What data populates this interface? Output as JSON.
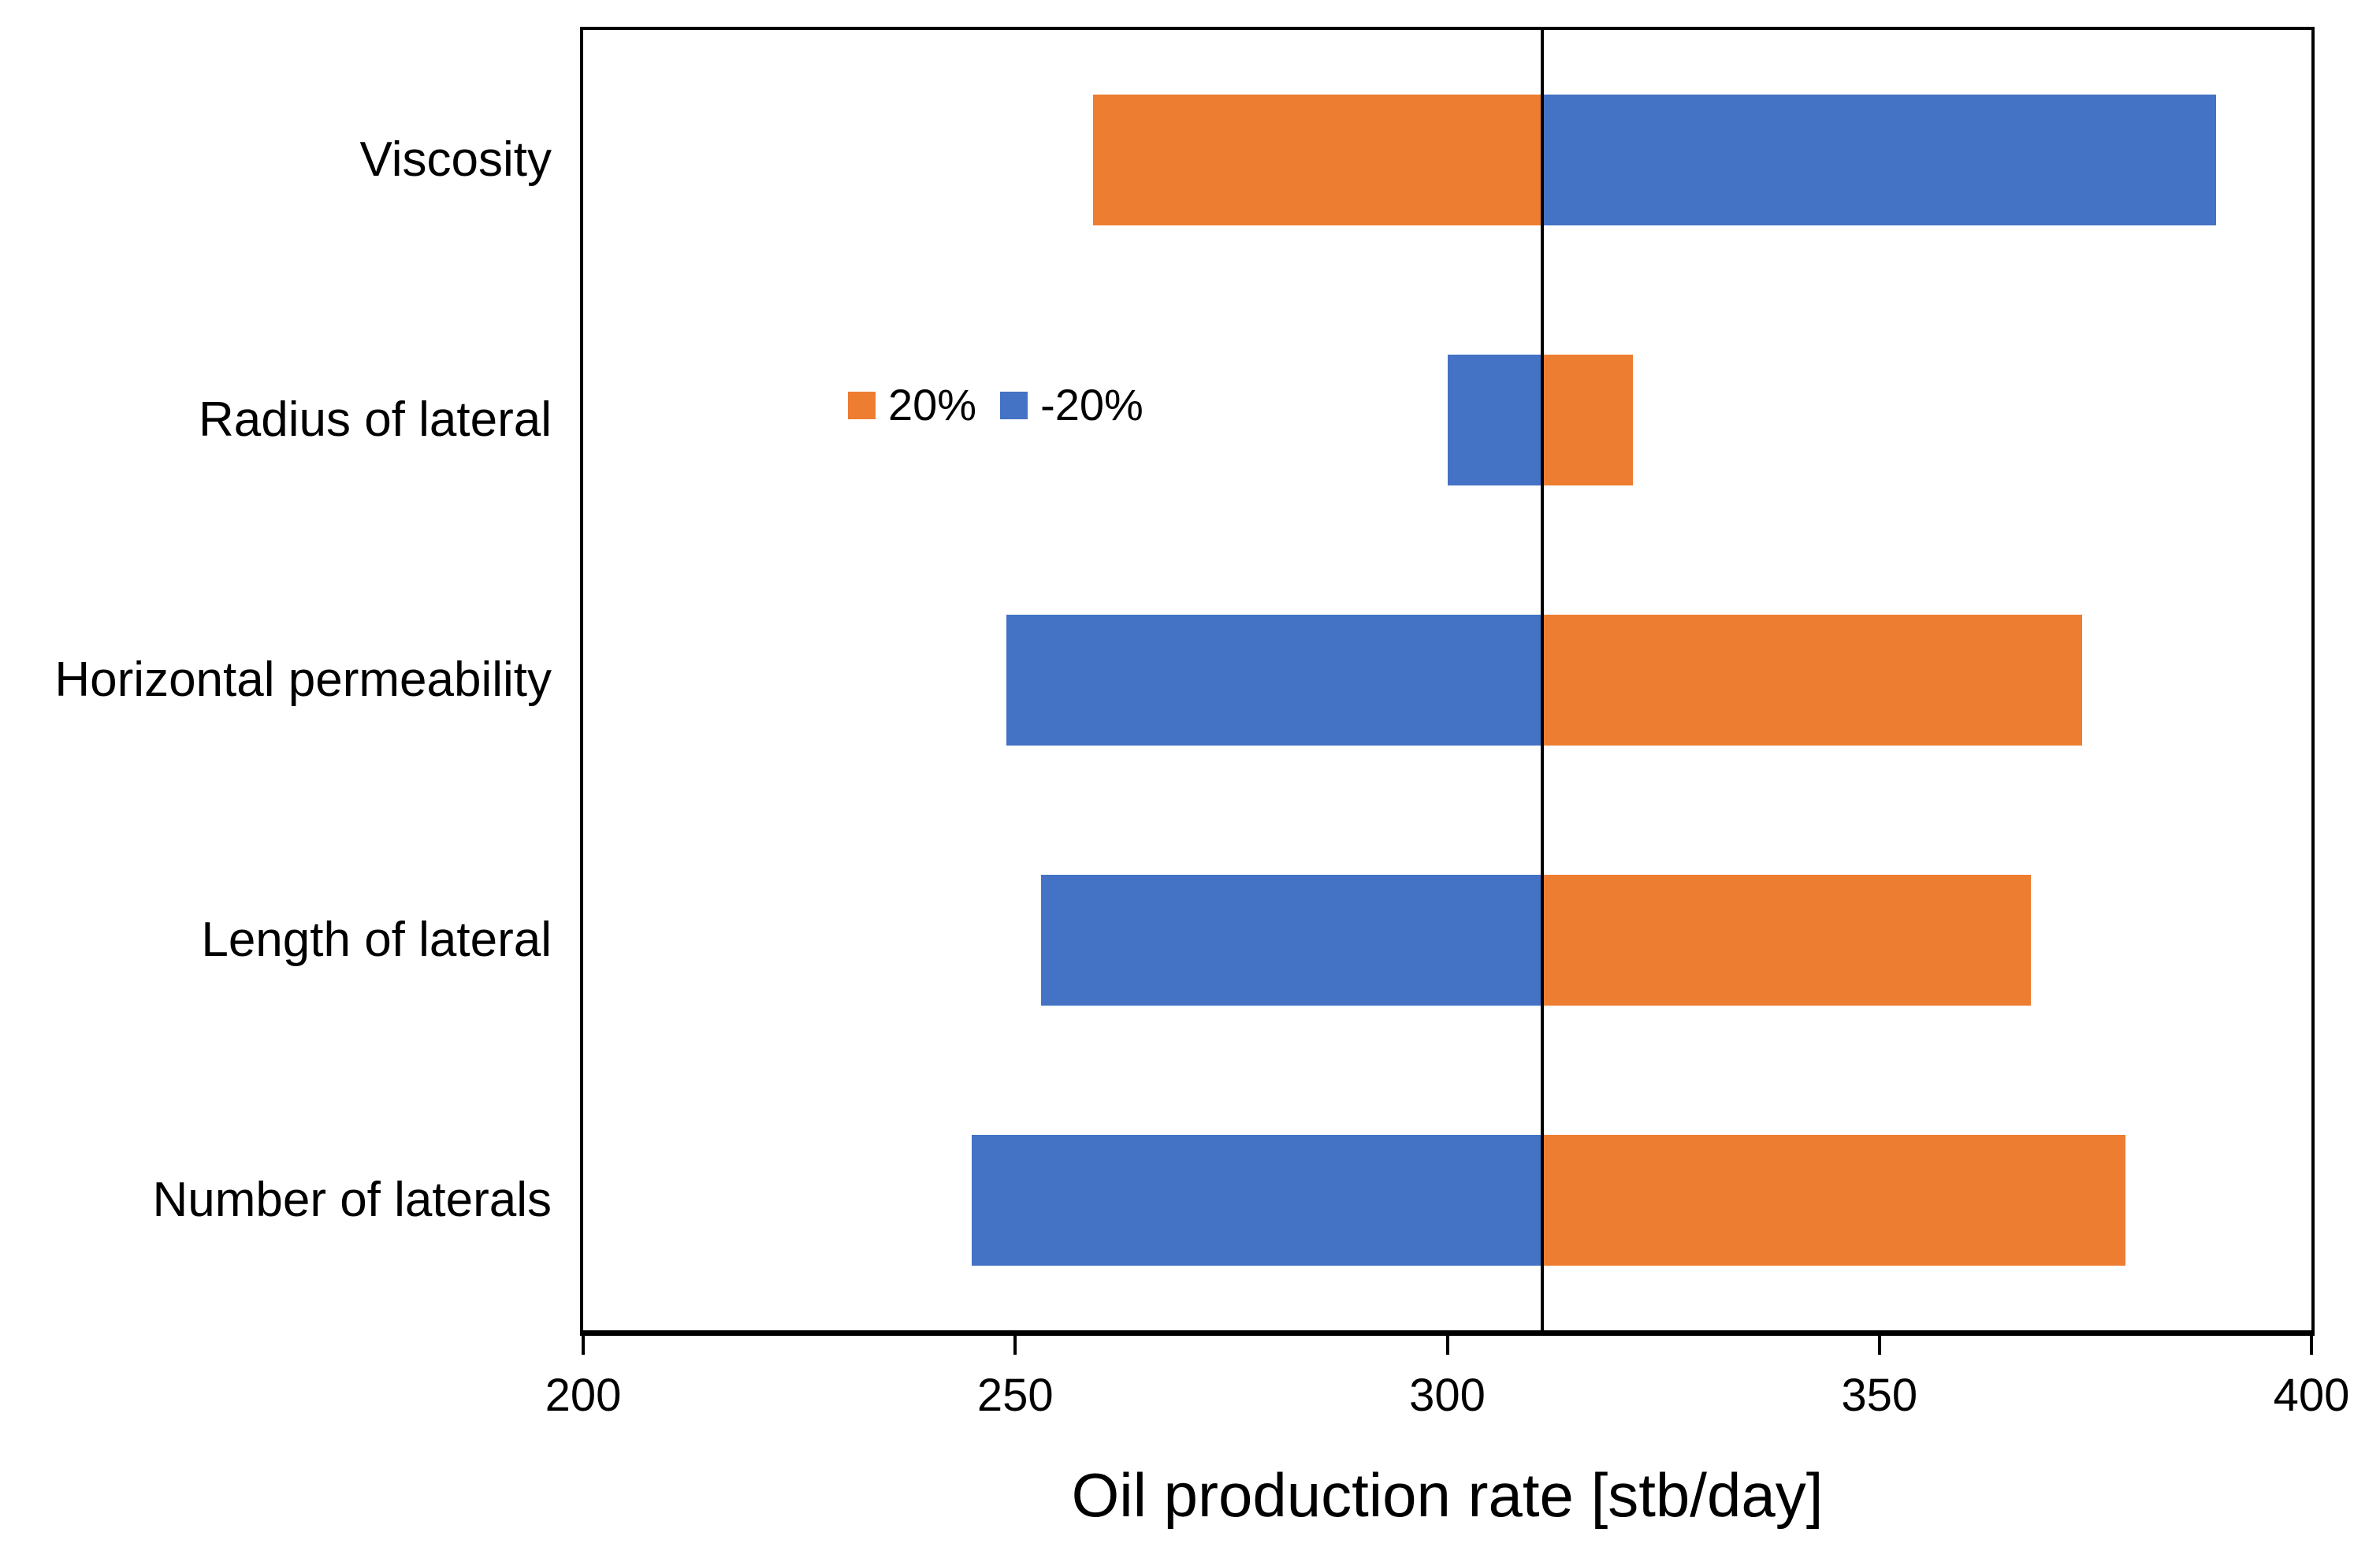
{
  "chart_data": {
    "type": "bar",
    "orientation": "horizontal-tornado",
    "title": "",
    "xlabel": "Oil production rate [stb/day]",
    "ylabel": "",
    "categories": [
      "Viscosity",
      "Radius of lateral",
      "Horizontal permeability",
      "Length of lateral",
      "Number of laterals"
    ],
    "baseline": 311,
    "series": [
      {
        "name": "20%",
        "color": "#ED7D31",
        "values": [
          259,
          321.5,
          373.5,
          367.5,
          378.5
        ]
      },
      {
        "name": "-20%",
        "color": "#4472C4",
        "values": [
          389,
          300,
          249,
          253,
          245
        ]
      }
    ],
    "xlim": [
      200,
      400
    ],
    "xticks": [
      "200",
      "250",
      "300",
      "350",
      "400"
    ],
    "grid": false,
    "legend_position": "inside-upper-left-of-second-band"
  },
  "colors": {
    "plus20": "#ED7D31",
    "minus20": "#4472C4",
    "axis": "#000000",
    "background": "#FFFFFF"
  }
}
